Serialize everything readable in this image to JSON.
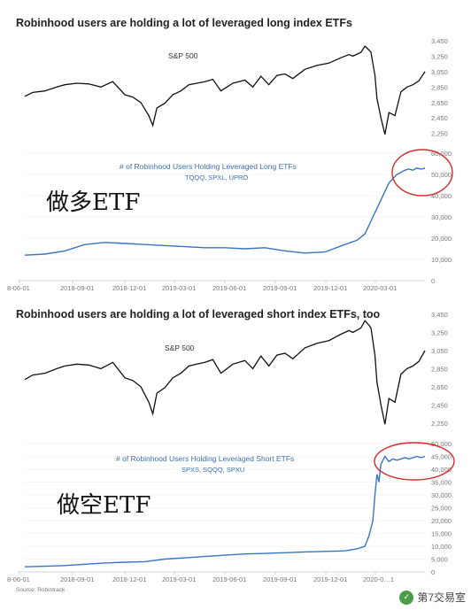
{
  "chart_data": [
    {
      "type": "line",
      "title": "Robinhood users are holding a lot of leveraged long index ETFs",
      "x_ticks": [
        "8-06-01",
        "2018-09-01",
        "2018-12-01",
        "2019-03-01",
        "2019-06-01",
        "2019-09-01",
        "2019-12-01",
        "2020-03-01"
      ],
      "top": {
        "label": "S&P 500",
        "y_ticks": [
          2250,
          2450,
          2650,
          2850,
          3050,
          3250,
          3450
        ],
        "ylim": [
          2200,
          3450
        ],
        "x": [
          0,
          0.02,
          0.05,
          0.08,
          0.1,
          0.13,
          0.16,
          0.19,
          0.22,
          0.25,
          0.27,
          0.29,
          0.31,
          0.32,
          0.33,
          0.35,
          0.37,
          0.39,
          0.41,
          0.43,
          0.45,
          0.47,
          0.49,
          0.52,
          0.55,
          0.57,
          0.59,
          0.61,
          0.63,
          0.65,
          0.67,
          0.7,
          0.73,
          0.76,
          0.79,
          0.81,
          0.82,
          0.84,
          0.85,
          0.86,
          0.865,
          0.875,
          0.88,
          0.89,
          0.9,
          0.91,
          0.925,
          0.94,
          0.955,
          0.97,
          0.985,
          1
        ],
        "values": [
          2730,
          2780,
          2800,
          2850,
          2880,
          2900,
          2890,
          2850,
          2920,
          2750,
          2720,
          2650,
          2480,
          2351,
          2580,
          2640,
          2750,
          2800,
          2880,
          2900,
          2920,
          2950,
          2800,
          2900,
          2940,
          2850,
          2990,
          2880,
          3000,
          3020,
          2960,
          3080,
          3130,
          3160,
          3230,
          3270,
          3250,
          3300,
          3380,
          3330,
          3300,
          3000,
          2700,
          2450,
          2237,
          2520,
          2480,
          2790,
          2850,
          2880,
          2930,
          3050
        ]
      },
      "bottom": {
        "label": "# of Robinhood Users Holding Leveraged Long ETFs",
        "tickers": "TQQQ, SPXL, UPRO",
        "y_ticks": [
          0,
          10000,
          20000,
          30000,
          40000,
          50000,
          60000
        ],
        "ylim": [
          0,
          60000
        ],
        "x": [
          0,
          0.05,
          0.1,
          0.15,
          0.2,
          0.25,
          0.3,
          0.35,
          0.4,
          0.45,
          0.5,
          0.55,
          0.6,
          0.65,
          0.7,
          0.75,
          0.8,
          0.83,
          0.85,
          0.87,
          0.89,
          0.9,
          0.91,
          0.92,
          0.93,
          0.94,
          0.95,
          0.96,
          0.97,
          0.98,
          0.99,
          1
        ],
        "values": [
          12000,
          12500,
          14000,
          17000,
          18000,
          17500,
          17000,
          16500,
          16000,
          15500,
          15500,
          15000,
          15500,
          14000,
          13000,
          13500,
          17000,
          19000,
          22000,
          30000,
          38000,
          42000,
          46000,
          48000,
          50000,
          51000,
          52000,
          52500,
          52000,
          53000,
          52500,
          53000
        ]
      },
      "annotation": "做多ETF"
    },
    {
      "type": "line",
      "title": "Robinhood users are holding a lot of leveraged short index ETFs, too",
      "x_ticks": [
        "8-06-01",
        "2018-09-01",
        "2018-12-01",
        "2019-03-01",
        "2019-06-01",
        "2019-09-01",
        "2019-12-01",
        "2020-0…1"
      ],
      "top": {
        "label": "S&P 500",
        "y_ticks": [
          2250,
          2450,
          2650,
          2850,
          3050,
          3250,
          3450
        ],
        "ylim": [
          2200,
          3450
        ],
        "x": [
          0,
          0.02,
          0.05,
          0.08,
          0.1,
          0.13,
          0.16,
          0.19,
          0.22,
          0.25,
          0.27,
          0.29,
          0.31,
          0.32,
          0.33,
          0.35,
          0.37,
          0.39,
          0.41,
          0.43,
          0.45,
          0.47,
          0.49,
          0.52,
          0.55,
          0.57,
          0.59,
          0.61,
          0.63,
          0.65,
          0.67,
          0.7,
          0.73,
          0.76,
          0.79,
          0.81,
          0.82,
          0.84,
          0.85,
          0.86,
          0.865,
          0.875,
          0.88,
          0.89,
          0.9,
          0.91,
          0.925,
          0.94,
          0.955,
          0.97,
          0.985,
          1
        ],
        "values": [
          2730,
          2780,
          2800,
          2850,
          2880,
          2900,
          2890,
          2850,
          2920,
          2750,
          2720,
          2650,
          2480,
          2351,
          2580,
          2640,
          2750,
          2800,
          2880,
          2900,
          2920,
          2950,
          2800,
          2900,
          2940,
          2850,
          2990,
          2880,
          3000,
          3020,
          2960,
          3080,
          3130,
          3160,
          3230,
          3270,
          3250,
          3300,
          3380,
          3330,
          3300,
          3000,
          2700,
          2450,
          2237,
          2520,
          2480,
          2790,
          2850,
          2880,
          2930,
          3050
        ]
      },
      "bottom": {
        "label": "# of Robinhood Users Holding Leveraged Short ETFs",
        "tickers": "SPXS, SQQQ, SPXU",
        "y_ticks": [
          0,
          5000,
          10000,
          15000,
          20000,
          25000,
          30000,
          35000,
          40000,
          45000,
          50000
        ],
        "ylim": [
          0,
          50000
        ],
        "x": [
          0,
          0.05,
          0.1,
          0.15,
          0.2,
          0.25,
          0.3,
          0.35,
          0.4,
          0.45,
          0.5,
          0.55,
          0.6,
          0.65,
          0.7,
          0.75,
          0.8,
          0.83,
          0.85,
          0.86,
          0.87,
          0.875,
          0.88,
          0.885,
          0.89,
          0.9,
          0.91,
          0.92,
          0.93,
          0.94,
          0.95,
          0.96,
          0.97,
          0.98,
          0.99,
          1
        ],
        "values": [
          2000,
          2200,
          2500,
          3000,
          3500,
          3800,
          4000,
          5000,
          5500,
          6000,
          6500,
          7000,
          7200,
          7500,
          7800,
          8000,
          8200,
          9000,
          10000,
          14000,
          20000,
          30000,
          38000,
          35000,
          42000,
          45000,
          43000,
          44000,
          43500,
          44000,
          44500,
          44000,
          44500,
          45000,
          44500,
          45000
        ]
      },
      "annotation": "做空ETF",
      "source": "Source:  Robintrack"
    }
  ],
  "watermark": "第7交易室"
}
